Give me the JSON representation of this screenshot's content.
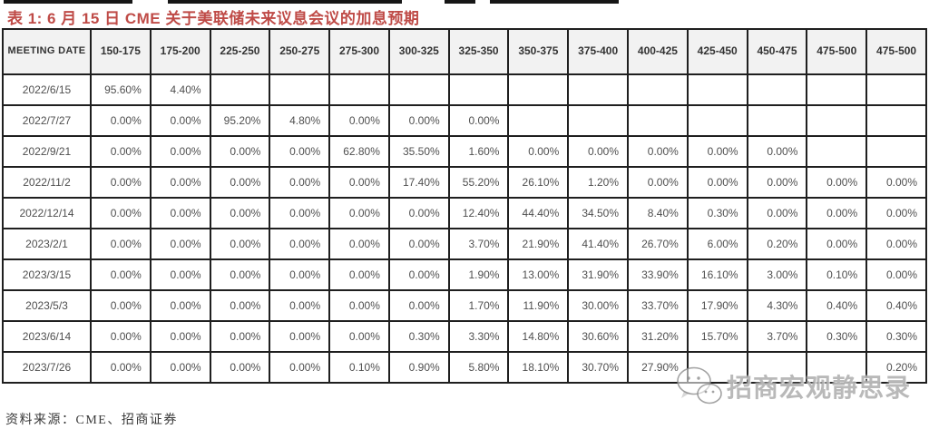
{
  "title": "表 1: 6 月 15 日 CME 关于美联储未来议息会议的加息预期",
  "source": "资料来源：CME、招商证券",
  "watermark": {
    "text": "招商宏观静思录",
    "icon": "wechat-icon"
  },
  "colors": {
    "title_red": "#bf4b47",
    "peak_cell": "#b2ebf7",
    "pre_peak_cell": "#f6f3d0",
    "header_bg": "#f2f2f2",
    "border": "#1f1f1f"
  },
  "table": {
    "corner_header": "MEETING DATE",
    "columns": [
      "150-175",
      "175-200",
      "225-250",
      "250-275",
      "275-300",
      "300-325",
      "325-350",
      "350-375",
      "375-400",
      "400-425",
      "425-450",
      "450-475",
      "475-500",
      "475-500"
    ],
    "rows": [
      {
        "date": "2022/6/15",
        "peak": 0,
        "values": [
          "95.60%",
          "4.40%",
          "",
          "",
          "",
          "",
          "",
          "",
          "",
          "",
          "",
          "",
          "",
          ""
        ]
      },
      {
        "date": "2022/7/27",
        "peak": 2,
        "values": [
          "0.00%",
          "0.00%",
          "95.20%",
          "4.80%",
          "0.00%",
          "0.00%",
          "0.00%",
          "",
          "",
          "",
          "",
          "",
          "",
          ""
        ]
      },
      {
        "date": "2022/9/21",
        "peak": 4,
        "values": [
          "0.00%",
          "0.00%",
          "0.00%",
          "0.00%",
          "62.80%",
          "35.50%",
          "1.60%",
          "0.00%",
          "0.00%",
          "0.00%",
          "0.00%",
          "0.00%",
          "",
          ""
        ]
      },
      {
        "date": "2022/11/2",
        "peak": 6,
        "values": [
          "0.00%",
          "0.00%",
          "0.00%",
          "0.00%",
          "0.00%",
          "17.40%",
          "55.20%",
          "26.10%",
          "1.20%",
          "0.00%",
          "0.00%",
          "0.00%",
          "0.00%",
          "0.00%"
        ]
      },
      {
        "date": "2022/12/14",
        "peak": 7,
        "values": [
          "0.00%",
          "0.00%",
          "0.00%",
          "0.00%",
          "0.00%",
          "0.00%",
          "12.40%",
          "44.40%",
          "34.50%",
          "8.40%",
          "0.30%",
          "0.00%",
          "0.00%",
          "0.00%"
        ]
      },
      {
        "date": "2023/2/1",
        "peak": 8,
        "values": [
          "0.00%",
          "0.00%",
          "0.00%",
          "0.00%",
          "0.00%",
          "0.00%",
          "3.70%",
          "21.90%",
          "41.40%",
          "26.70%",
          "6.00%",
          "0.20%",
          "0.00%",
          "0.00%"
        ]
      },
      {
        "date": "2023/3/15",
        "peak": 9,
        "values": [
          "0.00%",
          "0.00%",
          "0.00%",
          "0.00%",
          "0.00%",
          "0.00%",
          "1.90%",
          "13.00%",
          "31.90%",
          "33.90%",
          "16.10%",
          "3.00%",
          "0.10%",
          "0.00%"
        ]
      },
      {
        "date": "2023/5/3",
        "peak": 9,
        "values": [
          "0.00%",
          "0.00%",
          "0.00%",
          "0.00%",
          "0.00%",
          "0.00%",
          "1.70%",
          "11.90%",
          "30.00%",
          "33.70%",
          "17.90%",
          "4.30%",
          "0.40%",
          "0.40%"
        ]
      },
      {
        "date": "2023/6/14",
        "peak": 9,
        "values": [
          "0.00%",
          "0.00%",
          "0.00%",
          "0.00%",
          "0.00%",
          "0.30%",
          "3.30%",
          "14.80%",
          "30.60%",
          "31.20%",
          "15.70%",
          "3.70%",
          "0.30%",
          "0.30%"
        ]
      },
      {
        "date": "2023/7/26",
        "peak": 8,
        "values": [
          "0.00%",
          "0.00%",
          "0.00%",
          "0.00%",
          "0.10%",
          "0.90%",
          "5.80%",
          "18.10%",
          "30.70%",
          "27.90%",
          "",
          "",
          "",
          "0.20%"
        ]
      }
    ]
  }
}
